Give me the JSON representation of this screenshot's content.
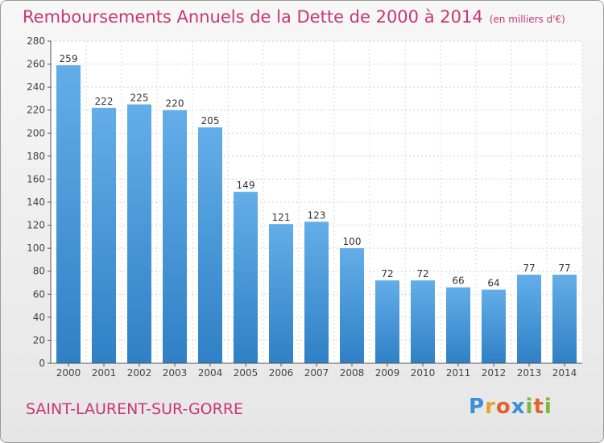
{
  "chart_data": {
    "type": "bar",
    "title": "Remboursements Annuels de la Dette de 2000 à 2014",
    "subtitle": "(en milliers d'€)",
    "categories": [
      "2000",
      "2001",
      "2002",
      "2003",
      "2004",
      "2005",
      "2006",
      "2007",
      "2008",
      "2009",
      "2010",
      "2011",
      "2012",
      "2013",
      "2014"
    ],
    "values": [
      259,
      222,
      225,
      220,
      205,
      149,
      121,
      123,
      100,
      72,
      72,
      66,
      64,
      77,
      77
    ],
    "ylim": [
      0,
      280
    ],
    "yticks": [
      0,
      20,
      40,
      60,
      80,
      100,
      120,
      140,
      160,
      180,
      200,
      220,
      240,
      260,
      280
    ],
    "grid": true,
    "colors": {
      "bar_top": "#63aee9",
      "bar_bottom": "#2f80c5",
      "title": "#c8376f"
    }
  },
  "commune": "SAINT-LAURENT-SUR-GORRE",
  "brand": {
    "letters": [
      "P",
      "r",
      "o",
      "x",
      "i",
      "t",
      "i"
    ],
    "colors": [
      "#3a8fd6",
      "#e8a02b",
      "#e0632a",
      "#3a8fd6",
      "#7ab83a",
      "#e0632a",
      "#7ab83a"
    ]
  }
}
